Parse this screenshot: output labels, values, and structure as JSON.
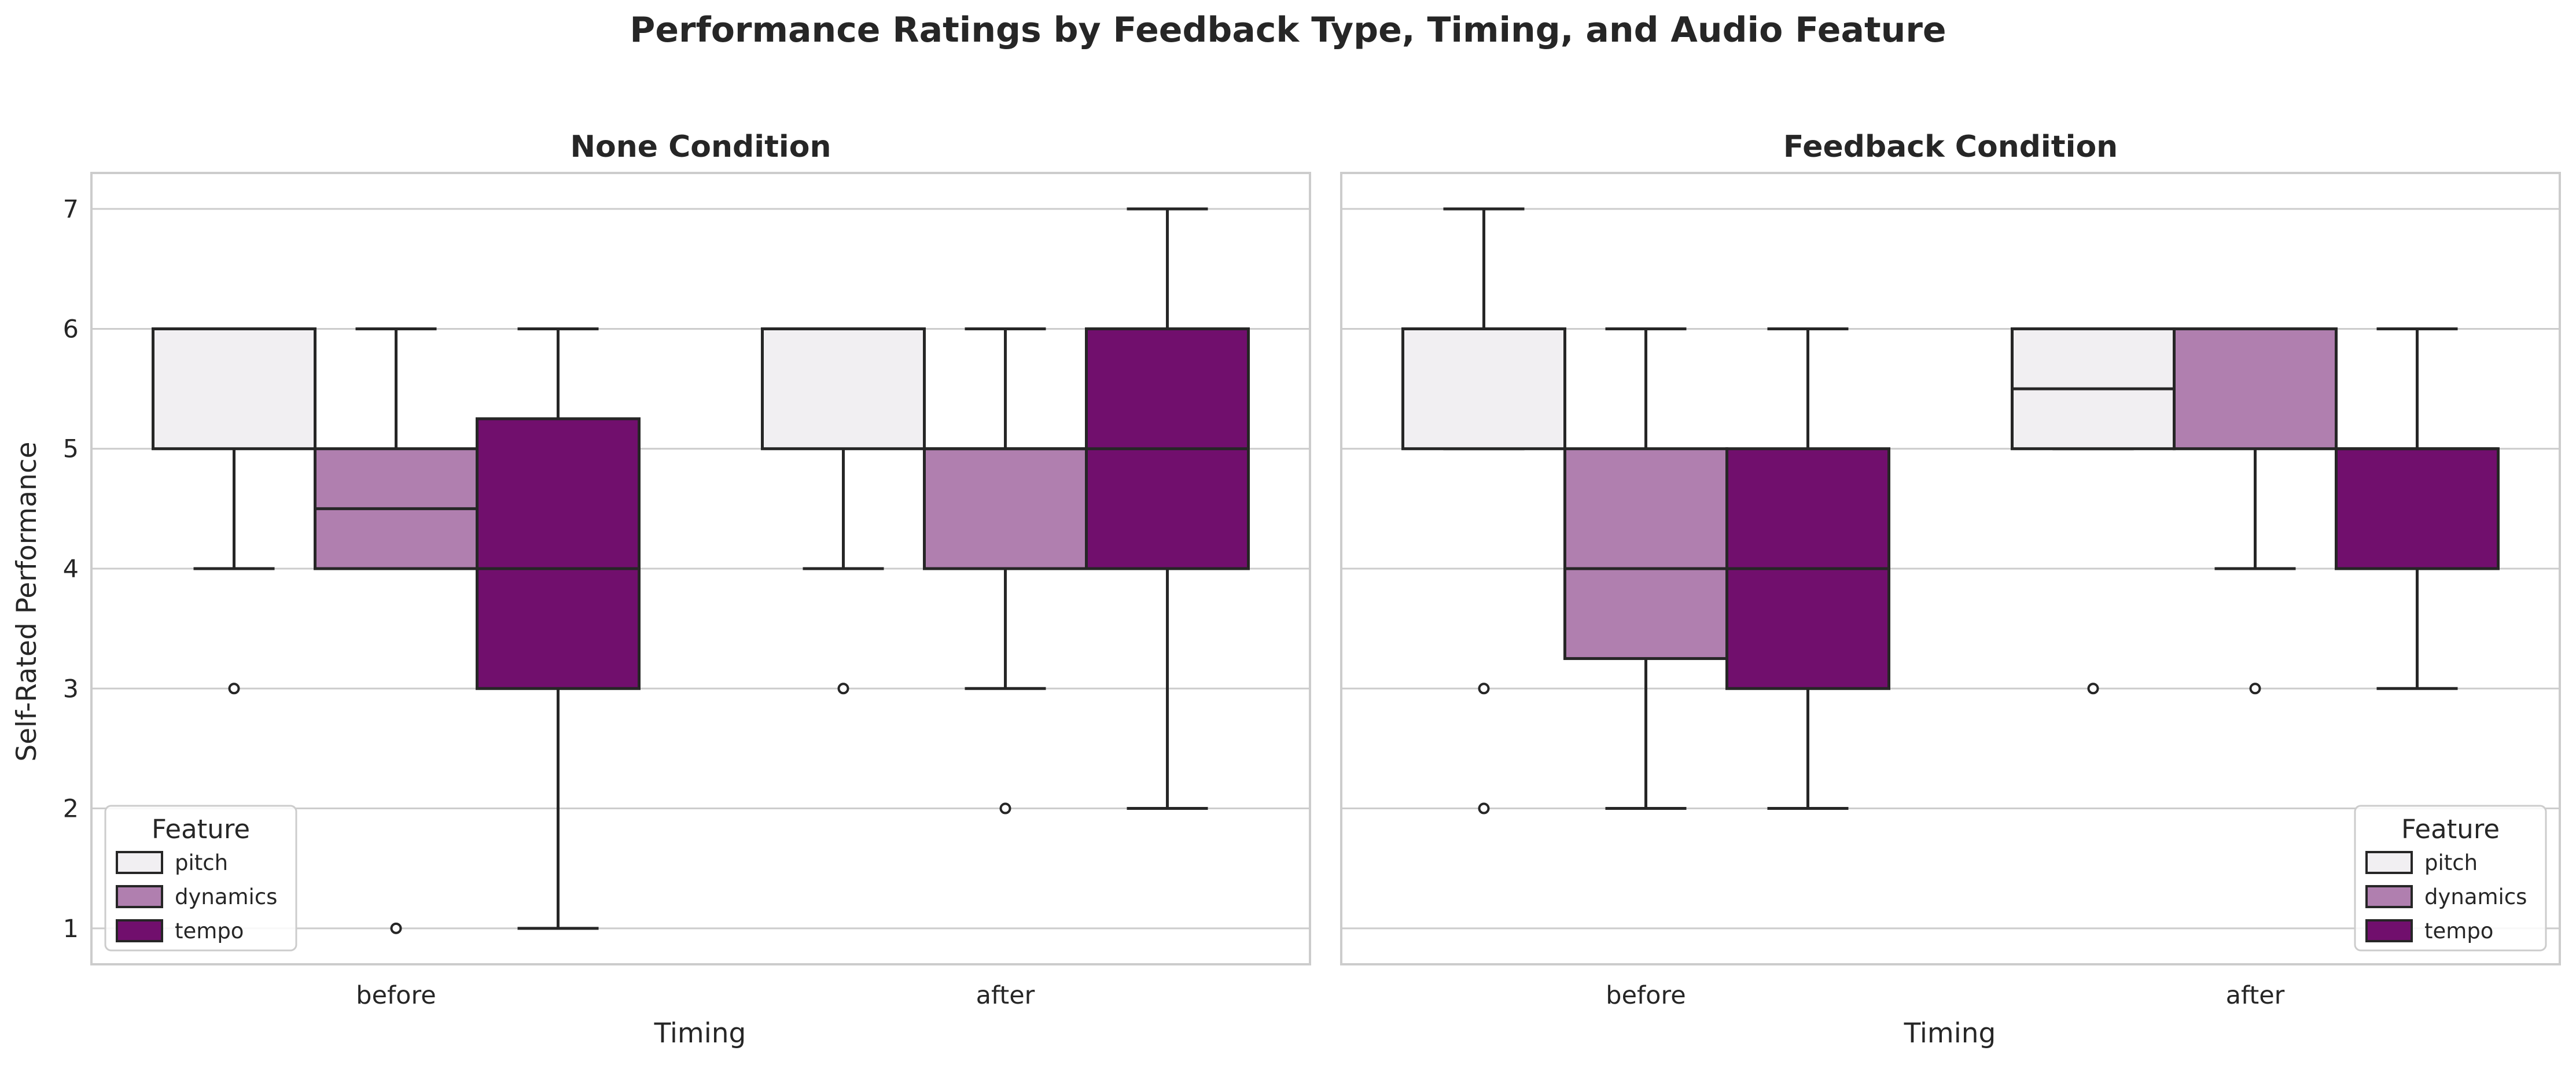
{
  "figure": {
    "title": "Performance Ratings by Feedback Type, Timing, and Audio Feature",
    "ylabel": "Self-Rated Performance",
    "xlabel": "Timing"
  },
  "colors": {
    "pitch": "#f1eff2",
    "dynamics": "#b07faf",
    "tempo": "#710f6d",
    "edge": "#262626",
    "grid": "#cccccc",
    "spine": "#cccccc"
  },
  "legend": {
    "title": "Feature",
    "items": [
      {
        "label": "pitch",
        "color": "#f1eff2"
      },
      {
        "label": "dynamics",
        "color": "#b07faf"
      },
      {
        "label": "tempo",
        "color": "#710f6d"
      }
    ]
  },
  "chart_data": [
    {
      "type": "box",
      "title": "None Condition",
      "xlabel": "Timing",
      "ylabel": "Self-Rated Performance",
      "ylim": [
        0.7,
        7.3
      ],
      "yticks": [
        1,
        2,
        3,
        4,
        5,
        6,
        7
      ],
      "categories": [
        "before",
        "after"
      ],
      "grid": true,
      "legend_position": "lower left",
      "series": [
        {
          "name": "pitch",
          "boxes": [
            {
              "category": "before",
              "whislo": 4,
              "q1": 5,
              "med": 6,
              "q3": 6,
              "whishi": 6,
              "fliers": [
                3
              ]
            },
            {
              "category": "after",
              "whislo": 4,
              "q1": 5,
              "med": 6,
              "q3": 6,
              "whishi": 6,
              "fliers": [
                3
              ]
            }
          ]
        },
        {
          "name": "dynamics",
          "boxes": [
            {
              "category": "before",
              "whislo": 4,
              "q1": 4,
              "med": 4.5,
              "q3": 5,
              "whishi": 6,
              "fliers": [
                1
              ]
            },
            {
              "category": "after",
              "whislo": 3,
              "q1": 4,
              "med": 5,
              "q3": 5,
              "whishi": 6,
              "fliers": [
                2
              ]
            }
          ]
        },
        {
          "name": "tempo",
          "boxes": [
            {
              "category": "before",
              "whislo": 1,
              "q1": 3,
              "med": 4,
              "q3": 5.25,
              "whishi": 6,
              "fliers": []
            },
            {
              "category": "after",
              "whislo": 2,
              "q1": 4,
              "med": 5,
              "q3": 6,
              "whishi": 7,
              "fliers": []
            }
          ]
        }
      ]
    },
    {
      "type": "box",
      "title": "Feedback Condition",
      "xlabel": "Timing",
      "ylabel": "",
      "ylim": [
        0.7,
        7.3
      ],
      "yticks": [
        1,
        2,
        3,
        4,
        5,
        6,
        7
      ],
      "categories": [
        "before",
        "after"
      ],
      "grid": true,
      "legend_position": "lower right",
      "series": [
        {
          "name": "pitch",
          "boxes": [
            {
              "category": "before",
              "whislo": 5,
              "q1": 5,
              "med": 6,
              "q3": 6,
              "whishi": 7,
              "fliers": [
                3,
                2
              ]
            },
            {
              "category": "after",
              "whislo": 5,
              "q1": 5,
              "med": 5.5,
              "q3": 6,
              "whishi": 6,
              "fliers": [
                3
              ]
            }
          ]
        },
        {
          "name": "dynamics",
          "boxes": [
            {
              "category": "before",
              "whislo": 2,
              "q1": 3.25,
              "med": 4,
              "q3": 5,
              "whishi": 6,
              "fliers": []
            },
            {
              "category": "after",
              "whislo": 4,
              "q1": 5,
              "med": 6,
              "q3": 6,
              "whishi": 6,
              "fliers": [
                3
              ]
            }
          ]
        },
        {
          "name": "tempo",
          "boxes": [
            {
              "category": "before",
              "whislo": 2,
              "q1": 3,
              "med": 4,
              "q3": 5,
              "whishi": 6,
              "fliers": []
            },
            {
              "category": "after",
              "whislo": 3,
              "q1": 4,
              "med": 5,
              "q3": 5,
              "whishi": 6,
              "fliers": []
            }
          ]
        }
      ]
    }
  ]
}
